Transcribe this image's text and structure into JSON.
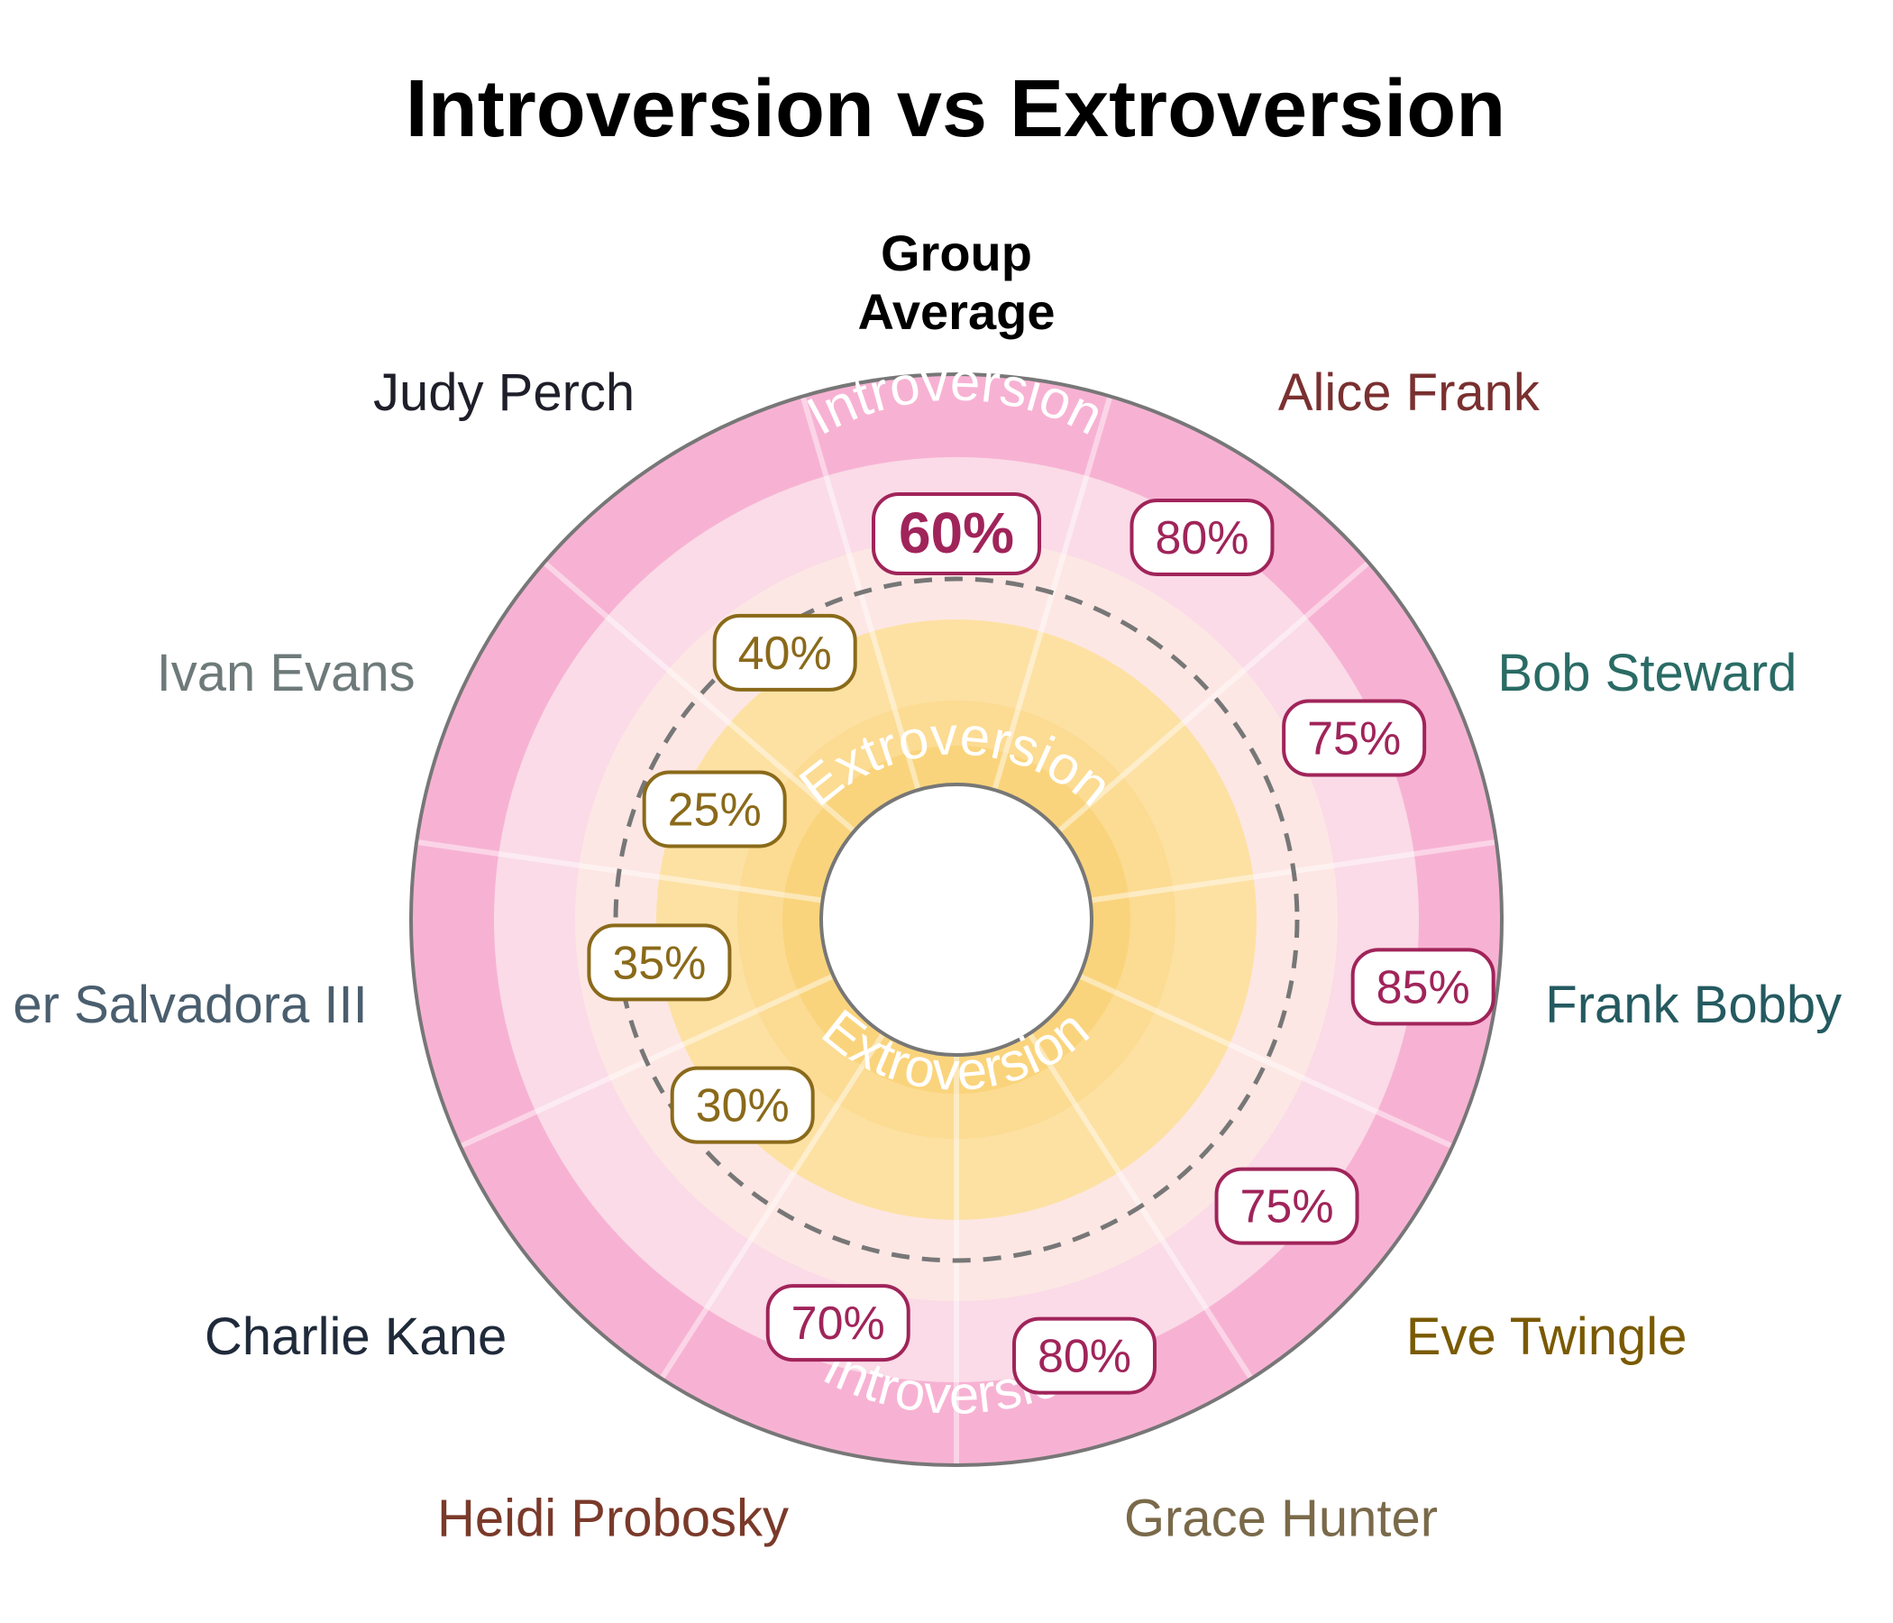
{
  "chart_data": {
    "type": "radial",
    "title": "Introversion vs Extroversion",
    "ring_labels": {
      "outer": "Introversion",
      "inner": "Extroversion"
    },
    "group_average": {
      "label_line1": "Group",
      "label_line2": "Average",
      "value": 60,
      "display": "60%"
    },
    "people": [
      {
        "name": "Alice Frank",
        "value": 80,
        "display": "80%",
        "name_color": "#7a3030"
      },
      {
        "name": "Bob Steward",
        "value": 75,
        "display": "75%",
        "name_color": "#2a6b65"
      },
      {
        "name": "Frank Bobby",
        "value": 85,
        "display": "85%",
        "name_color": "#245a60"
      },
      {
        "name": "Eve Twingle",
        "value": 75,
        "display": "75%",
        "name_color": "#7a5a00"
      },
      {
        "name": "Grace Hunter",
        "value": 80,
        "display": "80%",
        "name_color": "#7a6a4a"
      },
      {
        "name": "Heidi Probosky",
        "value": 70,
        "display": "70%",
        "name_color": "#7a3a2a"
      },
      {
        "name": "Charlie Kane",
        "value": 30,
        "display": "30%",
        "name_color": "#1f2a3a"
      },
      {
        "name": "er Salvadora III",
        "value": 35,
        "display": "35%",
        "name_color": "#4a5e6e"
      },
      {
        "name": "Ivan Evans",
        "value": 25,
        "display": "25%",
        "name_color": "#6e7a7a"
      },
      {
        "name": "Judy Perch",
        "value": 40,
        "display": "40%",
        "name_color": "#1f1f2a"
      }
    ],
    "colors": {
      "introversion_label": "#a0245a",
      "extroversion_label": "#8a6a1a",
      "outer_band": "#f7b2d3",
      "band2": "#fadbe7",
      "band3": "#fde7e4",
      "band4": "#fde1a3",
      "band5": "#fcdb92",
      "band6": "#fad47c"
    }
  }
}
